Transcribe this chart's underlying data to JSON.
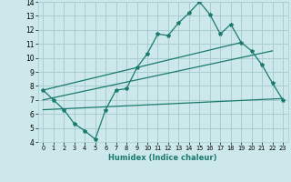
{
  "xlabel": "Humidex (Indice chaleur)",
  "bg_color": "#cce8ea",
  "grid_color": "#a8cdd0",
  "line_color": "#1a7a6e",
  "xlim": [
    -0.5,
    23.5
  ],
  "ylim": [
    4,
    14
  ],
  "yticks": [
    4,
    5,
    6,
    7,
    8,
    9,
    10,
    11,
    12,
    13,
    14
  ],
  "xticks": [
    0,
    1,
    2,
    3,
    4,
    5,
    6,
    7,
    8,
    9,
    10,
    11,
    12,
    13,
    14,
    15,
    16,
    17,
    18,
    19,
    20,
    21,
    22,
    23
  ],
  "line1_x": [
    0,
    1,
    2,
    3,
    4,
    5,
    6,
    7,
    8,
    9,
    10,
    11,
    12,
    13,
    14,
    15,
    16,
    17,
    18,
    19,
    20,
    21,
    22,
    23
  ],
  "line1_y": [
    7.7,
    7.0,
    6.3,
    5.3,
    4.8,
    4.2,
    6.3,
    7.7,
    7.8,
    9.3,
    10.3,
    11.7,
    11.6,
    12.5,
    13.2,
    14.0,
    13.1,
    11.7,
    12.4,
    11.1,
    10.5,
    9.5,
    8.2,
    7.0
  ],
  "line2_x": [
    0,
    19
  ],
  "line2_y": [
    7.7,
    11.1
  ],
  "line3_x": [
    0,
    22
  ],
  "line3_y": [
    7.0,
    10.5
  ],
  "line4_x": [
    0,
    23
  ],
  "line4_y": [
    6.3,
    7.1
  ]
}
